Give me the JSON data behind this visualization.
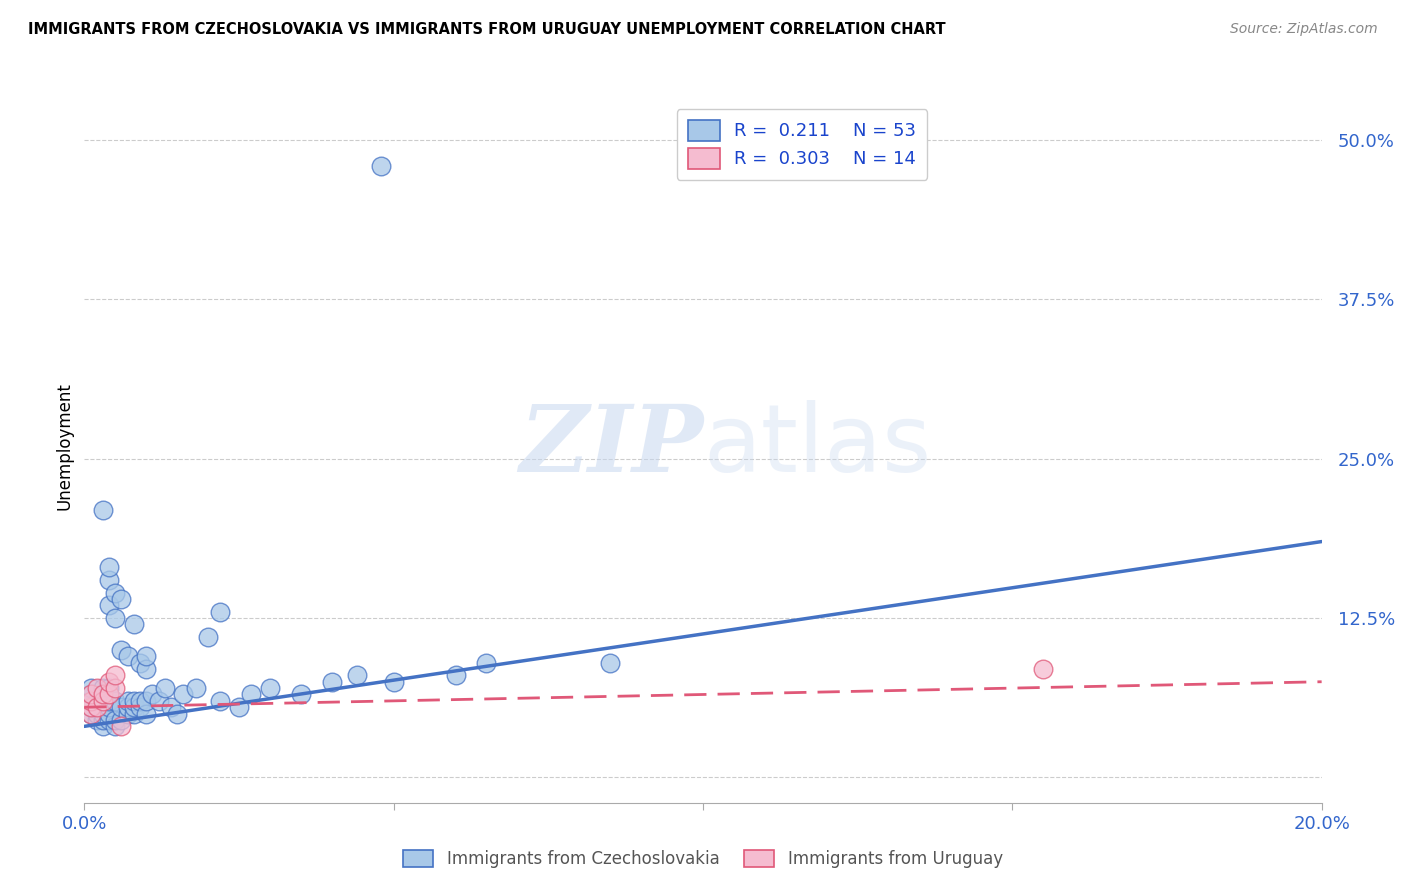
{
  "title": "IMMIGRANTS FROM CZECHOSLOVAKIA VS IMMIGRANTS FROM URUGUAY UNEMPLOYMENT CORRELATION CHART",
  "source": "Source: ZipAtlas.com",
  "ylabel": "Unemployment",
  "yticks": [
    0.0,
    0.125,
    0.25,
    0.375,
    0.5
  ],
  "ytick_labels": [
    "",
    "12.5%",
    "25.0%",
    "37.5%",
    "50.0%"
  ],
  "xlim": [
    0.0,
    0.2
  ],
  "ylim": [
    -0.02,
    0.54
  ],
  "color_czech": "#a8c8e8",
  "color_uruguay": "#f5bcd0",
  "color_czech_line": "#4472c4",
  "color_uruguay_line": "#e05878",
  "watermark_zip": "ZIP",
  "watermark_atlas": "atlas",
  "czech_x": [
    0.001,
    0.001,
    0.001,
    0.001,
    0.001,
    0.002,
    0.002,
    0.002,
    0.002,
    0.003,
    0.003,
    0.003,
    0.003,
    0.003,
    0.004,
    0.004,
    0.004,
    0.004,
    0.004,
    0.004,
    0.005,
    0.005,
    0.005,
    0.006,
    0.006,
    0.007,
    0.007,
    0.007,
    0.008,
    0.008,
    0.008,
    0.009,
    0.009,
    0.01,
    0.01,
    0.011,
    0.012,
    0.013,
    0.014,
    0.015,
    0.016,
    0.018,
    0.022,
    0.025,
    0.027,
    0.03,
    0.035,
    0.04,
    0.044,
    0.05,
    0.06,
    0.065,
    0.048
  ],
  "czech_y": [
    0.05,
    0.055,
    0.06,
    0.065,
    0.07,
    0.045,
    0.05,
    0.055,
    0.06,
    0.04,
    0.045,
    0.05,
    0.055,
    0.07,
    0.045,
    0.05,
    0.055,
    0.06,
    0.065,
    0.07,
    0.04,
    0.045,
    0.06,
    0.045,
    0.055,
    0.05,
    0.055,
    0.06,
    0.05,
    0.055,
    0.06,
    0.055,
    0.06,
    0.05,
    0.06,
    0.065,
    0.06,
    0.07,
    0.055,
    0.05,
    0.065,
    0.07,
    0.06,
    0.055,
    0.065,
    0.07,
    0.065,
    0.075,
    0.08,
    0.075,
    0.08,
    0.09,
    0.48
  ],
  "czech_outliers_x": [
    0.003,
    0.004,
    0.004,
    0.004,
    0.005,
    0.005,
    0.006,
    0.006,
    0.007,
    0.008,
    0.009,
    0.01,
    0.01,
    0.02,
    0.022,
    0.085
  ],
  "czech_outliers_y": [
    0.21,
    0.155,
    0.165,
    0.135,
    0.145,
    0.125,
    0.14,
    0.1,
    0.095,
    0.12,
    0.09,
    0.085,
    0.095,
    0.11,
    0.13,
    0.09
  ],
  "uruguay_x": [
    0.001,
    0.001,
    0.001,
    0.001,
    0.002,
    0.002,
    0.003,
    0.003,
    0.004,
    0.004,
    0.005,
    0.005,
    0.006,
    0.155
  ],
  "uruguay_y": [
    0.05,
    0.055,
    0.06,
    0.065,
    0.055,
    0.07,
    0.06,
    0.065,
    0.065,
    0.075,
    0.07,
    0.08,
    0.04,
    0.085
  ],
  "czech_line_x": [
    0.0,
    0.2
  ],
  "czech_line_y": [
    0.04,
    0.185
  ],
  "uruguay_line_x": [
    0.0,
    0.2
  ],
  "uruguay_line_y": [
    0.055,
    0.075
  ],
  "legend_items": [
    {
      "label": "R =  0.211    N = 53",
      "color": "#a8c8e8",
      "edge": "#4472c4"
    },
    {
      "label": "R =  0.303    N = 14",
      "color": "#f5bcd0",
      "edge": "#e05878"
    }
  ],
  "bottom_legend": [
    {
      "label": "Immigrants from Czechoslovakia",
      "color": "#a8c8e8",
      "edge": "#4472c4"
    },
    {
      "label": "Immigrants from Uruguay",
      "color": "#f5bcd0",
      "edge": "#e05878"
    }
  ]
}
